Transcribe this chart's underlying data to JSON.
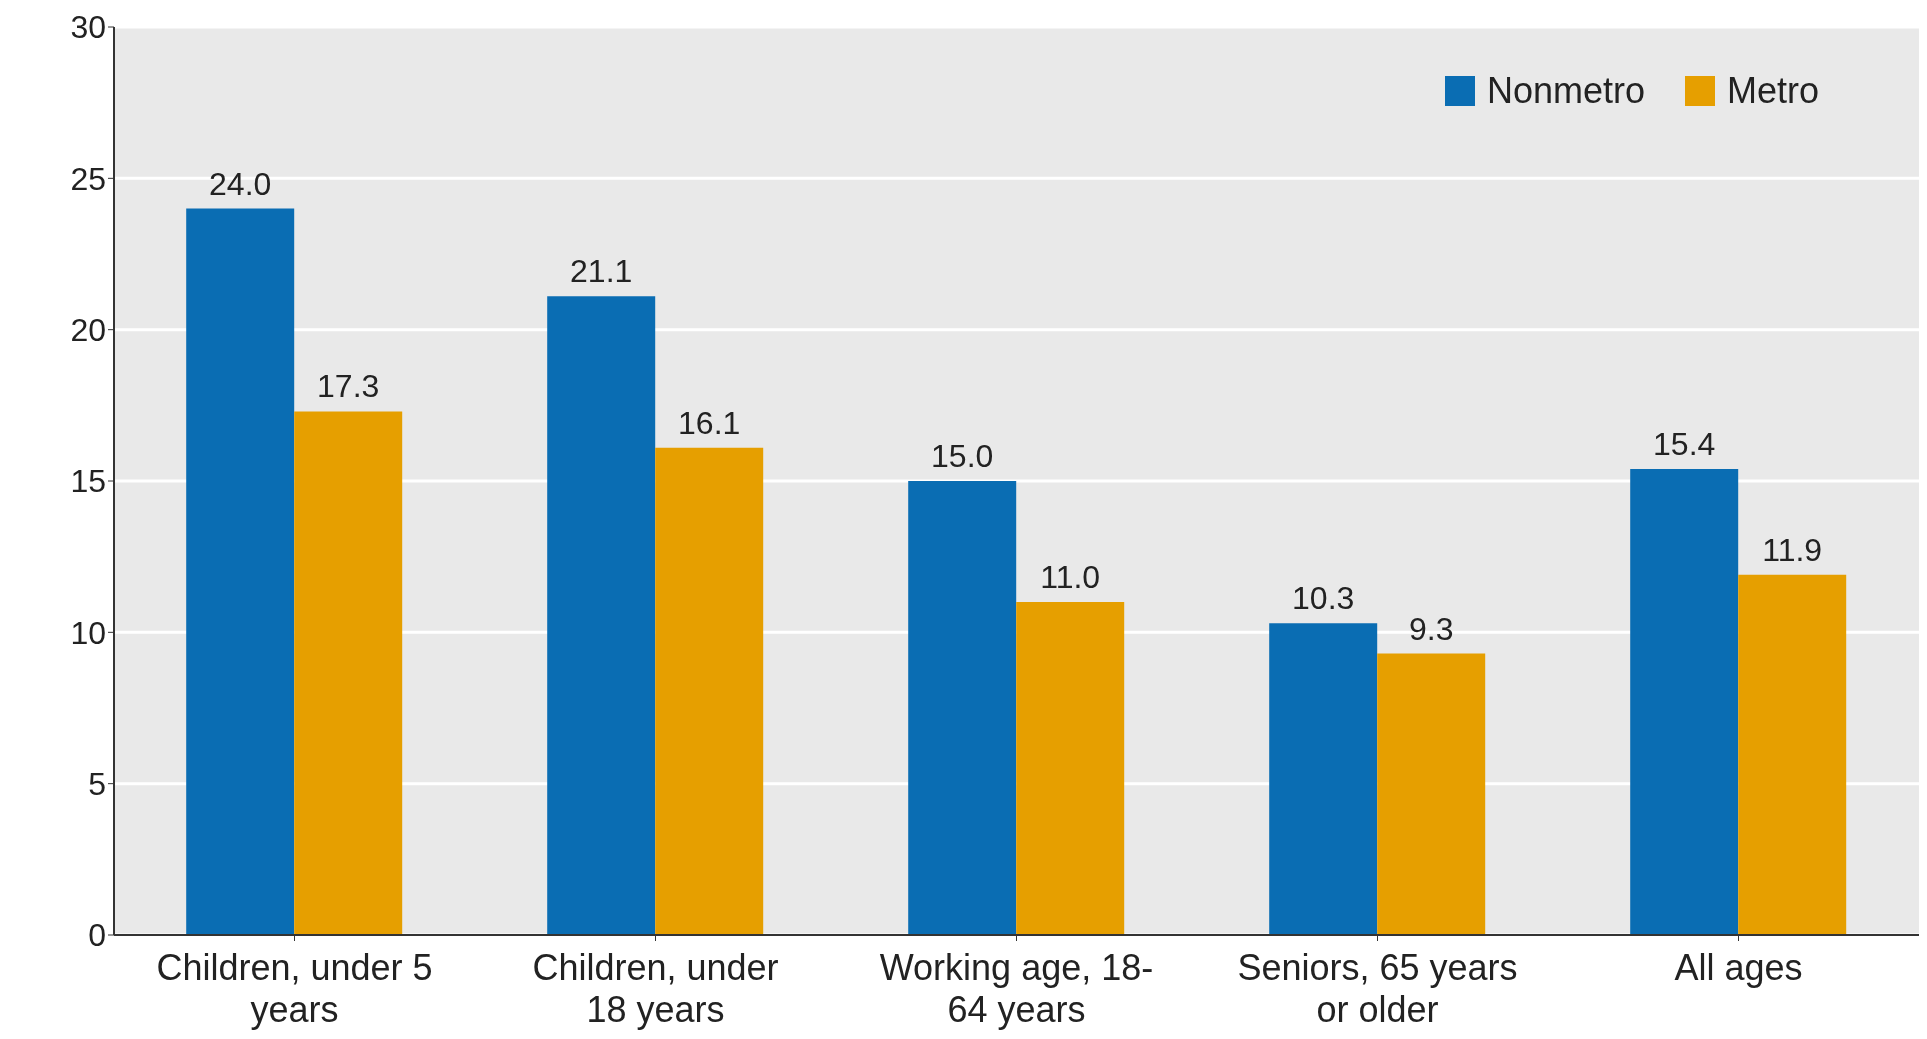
{
  "chart_data": {
    "type": "bar",
    "categories": [
      "Children, under 5 years",
      "Children, under 18 years",
      "Working age, 18-64 years",
      "Seniors, 65 years or older",
      "All ages"
    ],
    "series": [
      {
        "name": "Nonmetro",
        "color": "#0a6db3",
        "values": [
          24.0,
          21.1,
          15.0,
          10.3,
          15.4
        ],
        "value_labels": [
          "24.0",
          "21.1",
          "15.0",
          "10.3",
          "15.4"
        ]
      },
      {
        "name": "Metro",
        "color": "#e69f00",
        "values": [
          17.3,
          16.1,
          11.0,
          9.3,
          11.9
        ],
        "value_labels": [
          "17.3",
          "16.1",
          "11.0",
          "9.3",
          "11.9"
        ]
      }
    ],
    "ylim": [
      0,
      30
    ],
    "yticks": [
      0,
      5,
      10,
      15,
      20,
      25,
      30
    ],
    "grid": "y",
    "legend": "top right"
  }
}
